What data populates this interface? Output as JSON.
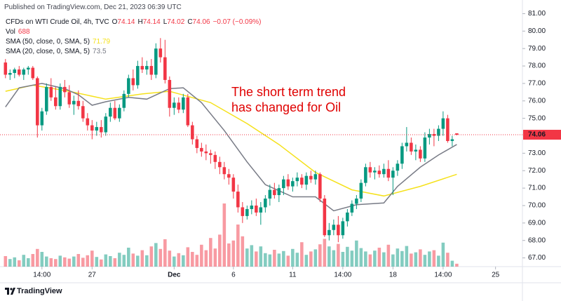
{
  "published": "Published on TradingView.com, Dec 21, 2023 06:39 UTC",
  "brand": "TradingView",
  "chart_data": {
    "type": "candlestick",
    "symbol": "CFDs on WTI Crude Oil, 4h, TVC",
    "fields": [
      {
        "label": "O",
        "value": 74.14
      },
      {
        "label": "H",
        "value": 74.14
      },
      {
        "label": "L",
        "value": 74.02
      },
      {
        "label": "C",
        "value": 74.06
      }
    ],
    "change": "−0.07 (−0.09%)",
    "annotation": "The short term trend\nhas changed for Oil",
    "last_price": 74.06,
    "up_color": "#089981",
    "down_color": "#f23645",
    "annotation_color": "#e00000",
    "xlim": [
      -1.2,
      113.4
    ],
    "xticks": [
      {
        "value": 8,
        "label": "14:00"
      },
      {
        "value": 19,
        "label": "27"
      },
      {
        "value": 37,
        "label": "Dec"
      },
      {
        "value": 50,
        "label": "6"
      },
      {
        "value": 63,
        "label": "11"
      },
      {
        "value": 74,
        "label": "14:00"
      },
      {
        "value": 85,
        "label": "18"
      },
      {
        "value": 96,
        "label": "14:00"
      },
      {
        "value": 107.5,
        "label": "25"
      }
    ],
    "ylim": [
      66.5,
      81.3
    ],
    "yticks": [
      {
        "value": 67,
        "label": "67.00"
      },
      {
        "value": 68,
        "label": "68.00"
      },
      {
        "value": 69,
        "label": "69.00"
      },
      {
        "value": 70,
        "label": "70.00"
      },
      {
        "value": 71,
        "label": "71.00"
      },
      {
        "value": 72,
        "label": "72.00"
      },
      {
        "value": 73,
        "label": "73.00"
      },
      {
        "value": 75,
        "label": "75.00"
      },
      {
        "value": 76,
        "label": "76.00"
      },
      {
        "value": 77,
        "label": "77.00"
      },
      {
        "value": 78,
        "label": "78.00"
      },
      {
        "value": 79,
        "label": "79.00"
      },
      {
        "value": 80,
        "label": "80.00"
      },
      {
        "value": 81,
        "label": "81.00"
      }
    ],
    "candles": [
      [
        78.2,
        78.4,
        77.3,
        77.5
      ],
      [
        77.5,
        77.8,
        77.2,
        77.6
      ],
      [
        77.6,
        77.9,
        77.3,
        77.8
      ],
      [
        77.8,
        78.0,
        77.4,
        77.5
      ],
      [
        77.5,
        77.9,
        77.2,
        77.8
      ],
      [
        77.8,
        78.0,
        77.5,
        77.9
      ],
      [
        77.9,
        78.0,
        77.2,
        77.3
      ],
      [
        77.3,
        77.4,
        73.9,
        74.6
      ],
      [
        74.6,
        75.6,
        74.3,
        75.4
      ],
      [
        75.4,
        77.0,
        75.2,
        76.8
      ],
      [
        76.8,
        77.3,
        76.0,
        76.2
      ],
      [
        76.2,
        76.8,
        75.5,
        75.7
      ],
      [
        75.7,
        77.0,
        75.5,
        76.8
      ],
      [
        76.8,
        77.2,
        76.2,
        76.5
      ],
      [
        76.5,
        76.9,
        75.6,
        75.8
      ],
      [
        75.8,
        76.3,
        75.2,
        76.0
      ],
      [
        76.0,
        76.6,
        75.5,
        75.7
      ],
      [
        75.7,
        76.0,
        74.8,
        75.0
      ],
      [
        75.0,
        75.3,
        74.3,
        74.6
      ],
      [
        74.6,
        74.9,
        73.8,
        74.3
      ],
      [
        74.3,
        74.8,
        74.0,
        74.5
      ],
      [
        74.5,
        74.9,
        73.9,
        74.2
      ],
      [
        74.2,
        75.3,
        74.0,
        75.1
      ],
      [
        75.1,
        75.9,
        74.8,
        75.6
      ],
      [
        75.6,
        76.0,
        74.9,
        75.0
      ],
      [
        75.0,
        75.8,
        74.8,
        75.6
      ],
      [
        75.6,
        76.6,
        75.4,
        76.4
      ],
      [
        76.4,
        77.5,
        76.2,
        77.3
      ],
      [
        77.3,
        77.8,
        76.6,
        76.9
      ],
      [
        76.9,
        78.3,
        76.7,
        78.0
      ],
      [
        78.0,
        78.5,
        77.6,
        77.8
      ],
      [
        77.8,
        78.3,
        77.5,
        78.0
      ],
      [
        78.0,
        78.4,
        77.2,
        77.5
      ],
      [
        77.5,
        79.3,
        77.3,
        79.0
      ],
      [
        79.0,
        79.6,
        78.2,
        78.5
      ],
      [
        78.5,
        79.5,
        77.0,
        77.2
      ],
      [
        77.2,
        77.4,
        75.1,
        75.6
      ],
      [
        75.6,
        76.2,
        75.2,
        75.9
      ],
      [
        75.9,
        76.2,
        75.3,
        75.5
      ],
      [
        75.5,
        76.4,
        75.3,
        76.2
      ],
      [
        76.2,
        76.4,
        74.5,
        74.6
      ],
      [
        74.6,
        74.8,
        73.5,
        73.8
      ],
      [
        73.8,
        74.0,
        73.0,
        73.3
      ],
      [
        73.3,
        73.6,
        72.8,
        73.1
      ],
      [
        73.1,
        73.5,
        72.6,
        73.0
      ],
      [
        73.0,
        73.2,
        72.4,
        72.9
      ],
      [
        72.9,
        73.1,
        72.1,
        72.5
      ],
      [
        72.5,
        72.8,
        71.8,
        72.2
      ],
      [
        72.2,
        72.5,
        71.5,
        71.8
      ],
      [
        71.8,
        72.1,
        71.2,
        71.6
      ],
      [
        71.6,
        71.8,
        70.4,
        70.8
      ],
      [
        70.8,
        71.2,
        69.6,
        69.9
      ],
      [
        69.9,
        70.2,
        69.0,
        69.4
      ],
      [
        69.4,
        70.0,
        69.2,
        69.8
      ],
      [
        69.8,
        70.3,
        69.5,
        70.0
      ],
      [
        70.0,
        70.4,
        69.4,
        69.6
      ],
      [
        69.6,
        70.2,
        68.9,
        69.9
      ],
      [
        69.9,
        70.6,
        69.6,
        70.4
      ],
      [
        70.4,
        71.2,
        70.0,
        70.9
      ],
      [
        70.9,
        71.3,
        70.4,
        70.6
      ],
      [
        70.6,
        71.2,
        70.2,
        71.0
      ],
      [
        71.0,
        71.7,
        70.6,
        71.5
      ],
      [
        71.5,
        71.8,
        70.9,
        71.1
      ],
      [
        71.1,
        71.6,
        70.8,
        71.4
      ],
      [
        71.4,
        71.9,
        71.1,
        71.6
      ],
      [
        71.6,
        71.8,
        71.0,
        71.2
      ],
      [
        71.2,
        71.9,
        70.9,
        71.7
      ],
      [
        71.7,
        72.0,
        71.3,
        71.5
      ],
      [
        71.5,
        72.0,
        71.2,
        71.8
      ],
      [
        71.8,
        71.9,
        70.2,
        70.4
      ],
      [
        70.4,
        70.6,
        68.2,
        68.3
      ],
      [
        68.3,
        69.0,
        68.0,
        68.6
      ],
      [
        68.6,
        69.2,
        68.3,
        68.9
      ],
      [
        68.9,
        69.4,
        67.9,
        68.3
      ],
      [
        68.3,
        69.3,
        68.1,
        69.1
      ],
      [
        69.1,
        69.8,
        68.8,
        69.6
      ],
      [
        69.6,
        70.3,
        69.4,
        70.1
      ],
      [
        70.1,
        70.6,
        69.8,
        70.4
      ],
      [
        70.4,
        71.5,
        70.2,
        71.3
      ],
      [
        71.3,
        72.4,
        71.1,
        72.2
      ],
      [
        72.2,
        72.5,
        71.6,
        71.9
      ],
      [
        71.9,
        72.2,
        71.5,
        72.0
      ],
      [
        72.0,
        72.3,
        71.6,
        71.8
      ],
      [
        71.8,
        72.4,
        71.6,
        72.1
      ],
      [
        72.1,
        72.6,
        71.4,
        71.6
      ],
      [
        71.6,
        72.2,
        70.6,
        72.0
      ],
      [
        72.0,
        72.6,
        71.7,
        72.4
      ],
      [
        72.4,
        73.6,
        72.1,
        73.4
      ],
      [
        73.4,
        74.5,
        73.1,
        73.6
      ],
      [
        73.6,
        73.9,
        72.9,
        73.1
      ],
      [
        73.1,
        73.5,
        72.6,
        73.2
      ],
      [
        73.2,
        73.4,
        72.5,
        72.7
      ],
      [
        72.7,
        74.2,
        72.5,
        73.9
      ],
      [
        73.9,
        74.4,
        73.5,
        74.1
      ],
      [
        74.1,
        74.4,
        73.4,
        74.0
      ],
      [
        74.0,
        74.6,
        73.7,
        74.4
      ],
      [
        74.4,
        75.4,
        74.0,
        75.0
      ],
      [
        75.0,
        75.2,
        73.6,
        73.7
      ],
      [
        73.7,
        74.0,
        73.4,
        73.8
      ],
      [
        74.14,
        74.14,
        74.02,
        74.06
      ]
    ],
    "volume": {
      "name": "Vol",
      "ylim": [
        0,
        40000
      ],
      "values": [
        2500,
        1800,
        2200,
        1500,
        2800,
        2000,
        3000,
        4200,
        3500,
        2400,
        2000,
        1800,
        2600,
        2200,
        1900,
        2400,
        3000,
        2100,
        2700,
        3800,
        2300,
        1700,
        2900,
        2500,
        2000,
        3300,
        2800,
        4500,
        3100,
        2600,
        3900,
        2700,
        4800,
        5600,
        4200,
        6500,
        3800,
        2400,
        3200,
        2700,
        4600,
        3500,
        2800,
        5200,
        3900,
        6800,
        4300,
        7600,
        15000,
        5500,
        6200,
        10000,
        7200,
        4300,
        5100,
        3600,
        4800,
        3200,
        2900,
        4000,
        3100,
        3700,
        2600,
        4200,
        3300,
        5800,
        2800,
        3600,
        4100,
        5300,
        6600,
        4800,
        3900,
        5400,
        3500,
        4700,
        3800,
        6200,
        4400,
        3600,
        2900,
        3800,
        4500,
        3400,
        5200,
        2900,
        4300,
        3700,
        4900,
        3100,
        3400,
        4100,
        2800,
        3600,
        3900,
        2600,
        5700,
        3300,
        1400,
        688
      ]
    },
    "series": [
      {
        "name": "SMA (50, close, 0, SMA, 5)",
        "color": "#f5e11b",
        "x": [
          0,
          6,
          14,
          22,
          30,
          36,
          45,
          53,
          60,
          68,
          76,
          83,
          91,
          99
        ],
        "values": [
          76.55,
          76.9,
          76.55,
          76.1,
          76.4,
          76.55,
          75.9,
          74.7,
          73.5,
          71.9,
          70.9,
          70.55,
          71.1,
          71.79
        ]
      },
      {
        "name": "SMA (20, close, 0, SMA, 5)",
        "color": "#787b86",
        "x": [
          0,
          3,
          8,
          13,
          16,
          19,
          22,
          27,
          31,
          36,
          39,
          43,
          48,
          53,
          57,
          63,
          68,
          72,
          77,
          83,
          86,
          91,
          95,
          99
        ],
        "values": [
          75.65,
          76.75,
          77.0,
          76.7,
          76.35,
          75.75,
          75.95,
          76.2,
          76.1,
          76.7,
          76.75,
          75.9,
          74.3,
          72.5,
          71.2,
          70.5,
          70.5,
          69.7,
          70.05,
          70.15,
          71.1,
          72.2,
          72.9,
          73.5
        ]
      }
    ]
  }
}
